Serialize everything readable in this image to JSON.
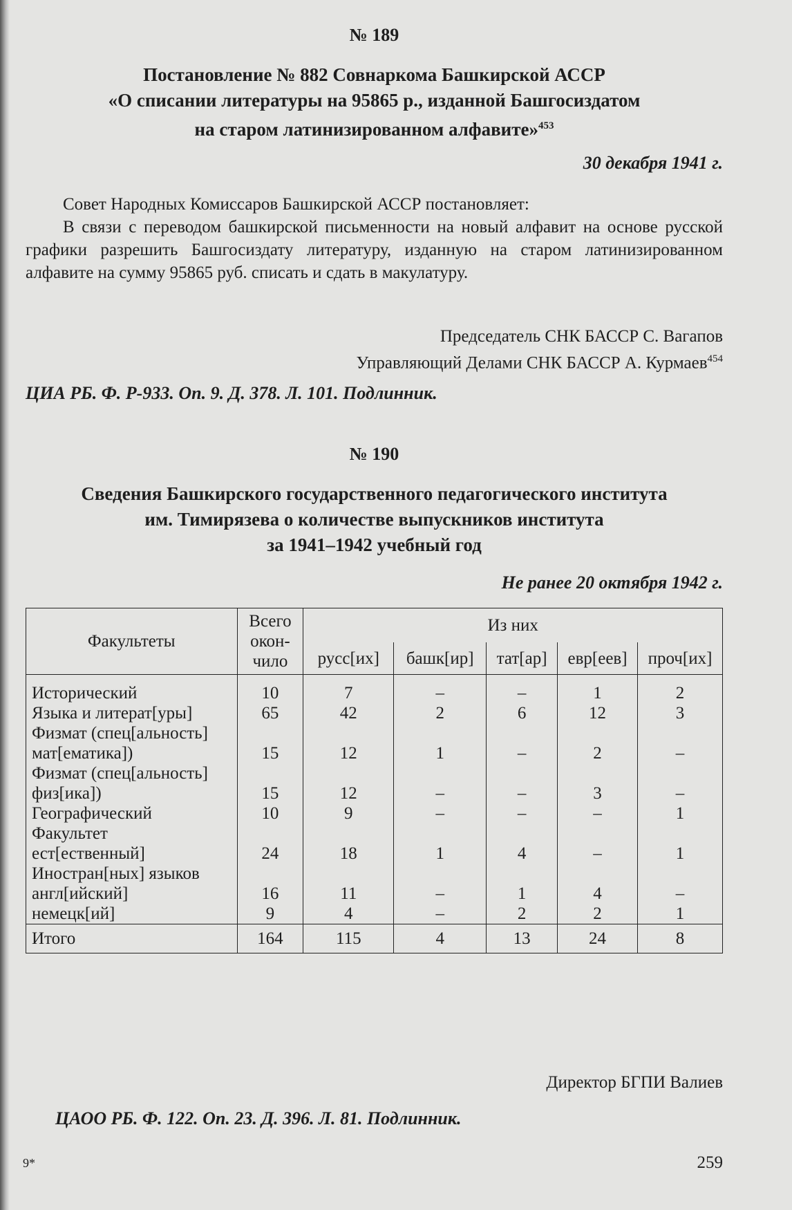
{
  "doc1": {
    "number": "№ 189",
    "title": [
      "Постановление № 882 Совнаркома Башкирской АССР",
      "«О списании литературы на 95865 р., изданной Башгосиздатом",
      "на старом латинизированном алфавите»"
    ],
    "title_footnote": "453",
    "date": "30 декабря 1941 г.",
    "paragraphs": [
      "Совет Народных Комиссаров Башкирской АССР постановляет:",
      "В связи с переводом башкирской письменности на новый алфавит на основе русской графики разрешить Башгосиздату литературу, изданную на старом латинизированном алфавите на сумму 95865 руб. списать и сдать в макулатуру."
    ],
    "signatures": [
      "Председатель СНК БАССР С. Вагапов",
      "Управляющий Делами СНК БАССР А. Курмаев"
    ],
    "signature_footnote": "454",
    "source": "ЦИА РБ. Ф. Р-933. Оп. 9. Д. 378. Л. 101. Подлинник."
  },
  "doc2": {
    "number": "№ 190",
    "title": [
      "Сведения Башкирского государственного педагогического института",
      "им. Тимирязева о количестве выпускников института",
      "за 1941–1942 учебный год"
    ],
    "date": "Не ранее 20 октября 1942 г.",
    "table": {
      "header": {
        "faculty": "Факультеты",
        "total": [
          "Всего",
          "окон-",
          "чило"
        ],
        "of_which": "Из них",
        "sub": [
          "русс[их]",
          "башк[ир]",
          "тат[ар]",
          "евр[еев]",
          "проч[их]"
        ]
      },
      "rows": [
        {
          "label": [
            "Исторический"
          ],
          "cells": [
            "10",
            "7",
            "–",
            "–",
            "1",
            "2"
          ]
        },
        {
          "label": [
            "Языка и литерат[уры]"
          ],
          "cells": [
            "65",
            "42",
            "2",
            "6",
            "12",
            "3"
          ]
        },
        {
          "label": [
            "Физмат (спец[альность]",
            "мат[ематика])"
          ],
          "cells": [
            "15",
            "12",
            "1",
            "–",
            "2",
            "–"
          ]
        },
        {
          "label": [
            "Физмат (спец[альность]",
            "физ[ика])"
          ],
          "cells": [
            "15",
            "12",
            "–",
            "–",
            "3",
            "–"
          ]
        },
        {
          "label": [
            "Географический"
          ],
          "cells": [
            "10",
            "9",
            "–",
            "–",
            "–",
            "1"
          ]
        },
        {
          "label": [
            "Факультет",
            "ест[ественный]"
          ],
          "cells": [
            "24",
            "18",
            "1",
            "4",
            "–",
            "1"
          ]
        },
        {
          "label": [
            "Иностран[ных] языков",
            "англ[ийский]"
          ],
          "cells": [
            "16",
            "11",
            "–",
            "1",
            "4",
            "–"
          ]
        },
        {
          "label": [
            "немецк[ий]"
          ],
          "cells": [
            "9",
            "4",
            "–",
            "2",
            "2",
            "1"
          ]
        }
      ],
      "total": {
        "label": "Итого",
        "cells": [
          "164",
          "115",
          "4",
          "13",
          "24",
          "8"
        ]
      }
    },
    "signature": "Директор БГПИ Валиев",
    "source": "ЦАОО РБ. Ф. 122. Оп. 23. Д. 396. Л. 81. Подлинник."
  },
  "footer": {
    "signature_mark": "9*",
    "page_number": "259"
  }
}
